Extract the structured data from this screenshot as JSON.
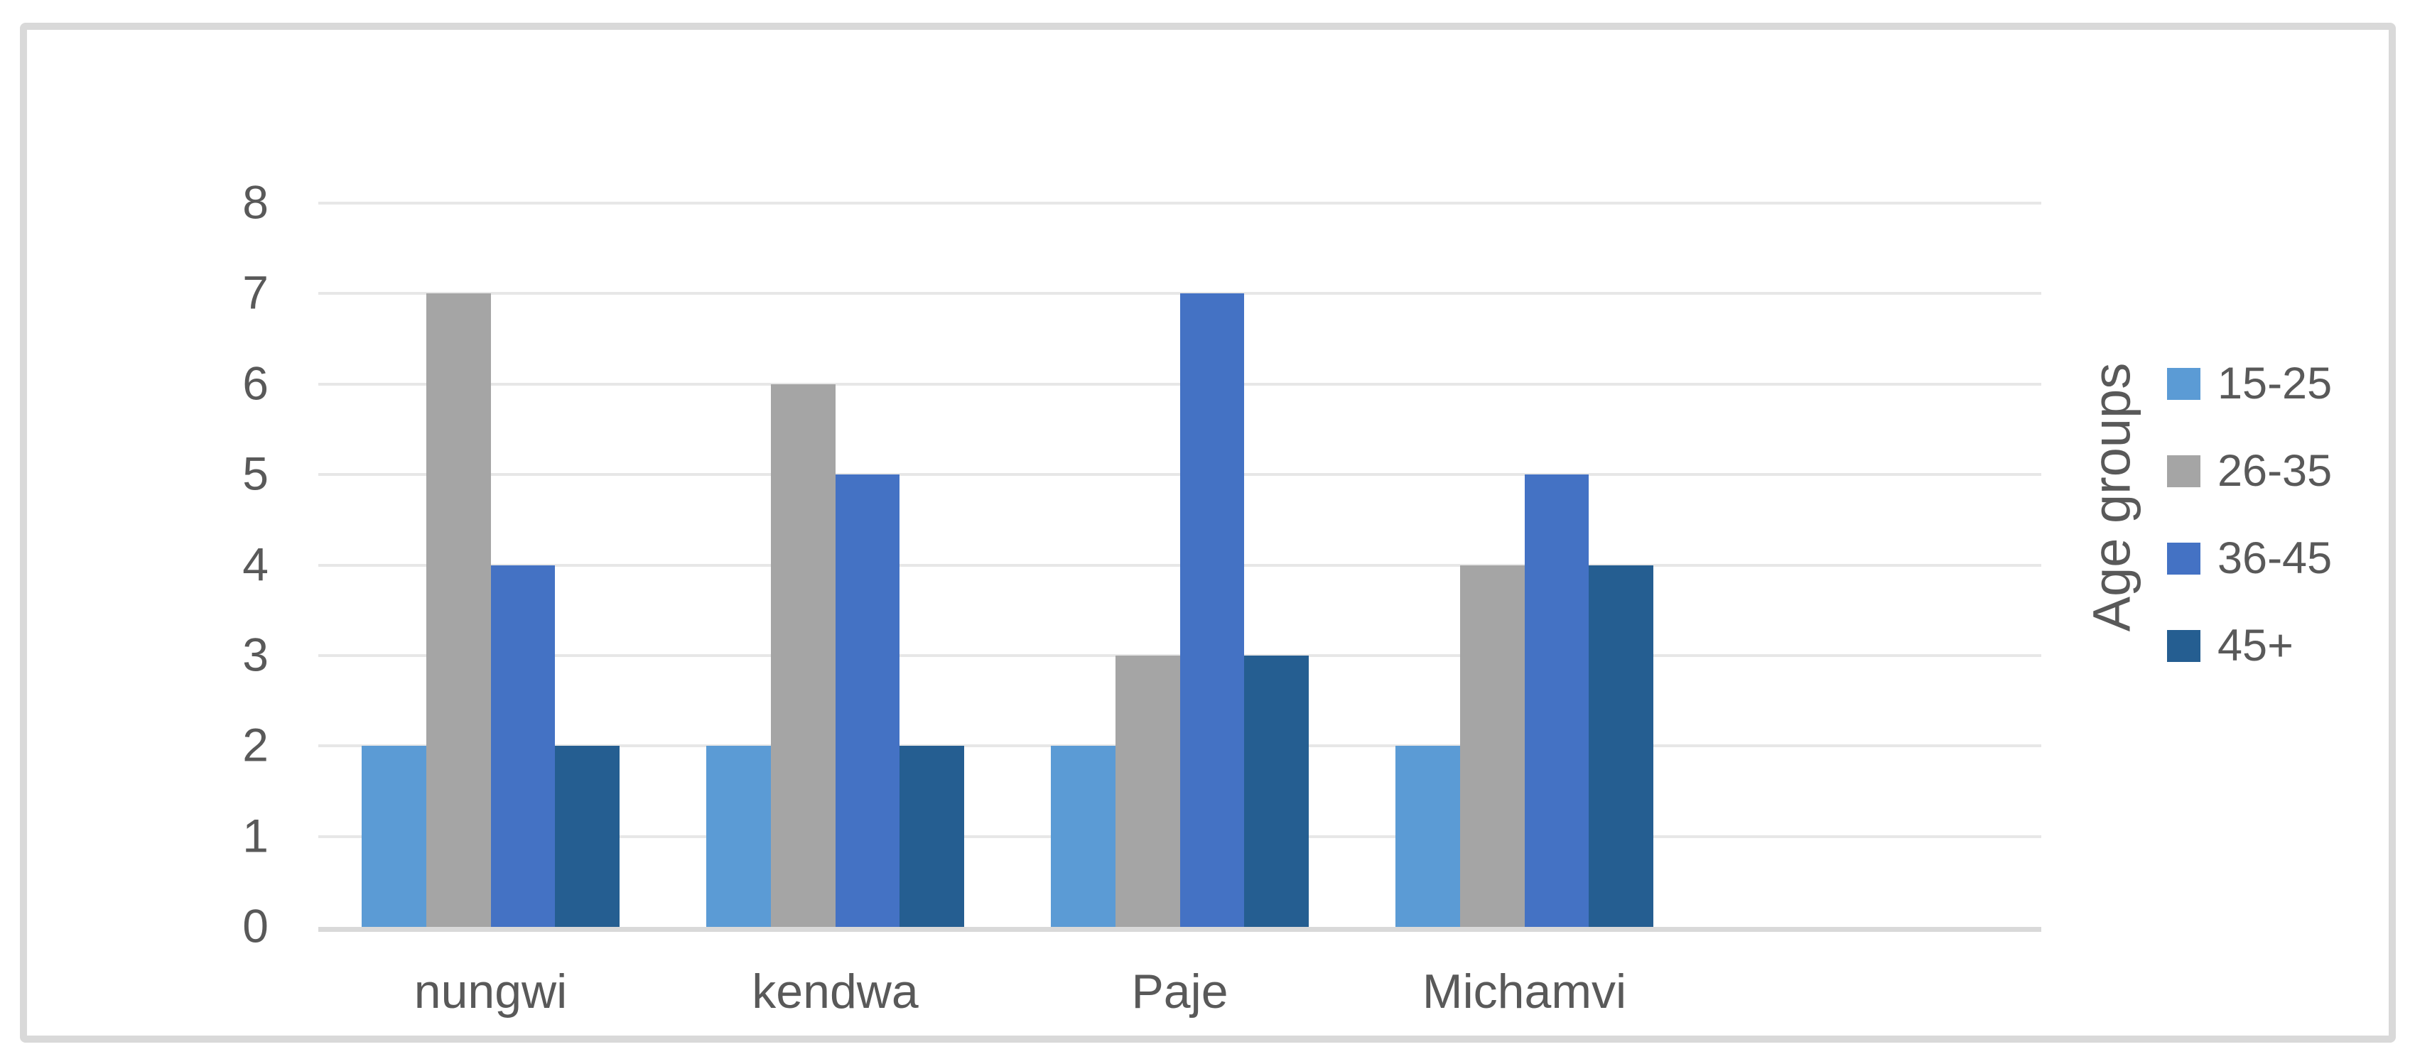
{
  "chart_data": {
    "type": "bar",
    "title": "",
    "categories": [
      "nungwi",
      "kendwa",
      "Paje",
      "Michamvi"
    ],
    "series": [
      {
        "name": "15-25",
        "color": "#5B9BD5",
        "values": [
          2,
          2,
          2,
          2
        ]
      },
      {
        "name": "26-35",
        "color": "#A5A5A5",
        "values": [
          7,
          6,
          3,
          4
        ]
      },
      {
        "name": "36-45",
        "color": "#4472C4",
        "values": [
          4,
          5,
          7,
          5
        ]
      },
      {
        "name": "45+",
        "color": "#255E91",
        "values": [
          2,
          2,
          3,
          4
        ]
      }
    ],
    "ylim": [
      0,
      8
    ],
    "yticks": [
      "0",
      "1",
      "2",
      "3",
      "4",
      "5",
      "6",
      "7",
      "8"
    ],
    "xlabel": "",
    "ylabel": "",
    "legend_title": "Age groups",
    "legend_position": "right",
    "grid": "horizontal-major",
    "empty_trailing_slots": 1
  },
  "colors": {
    "text": "#595959",
    "gridline": "#E7E7E7",
    "axis_line": "#D9D9D9",
    "frame_border": "#D9D9D9",
    "background": "#FFFFFF"
  }
}
